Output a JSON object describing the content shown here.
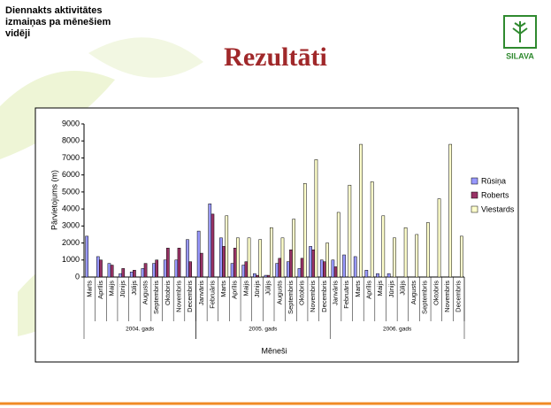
{
  "header": {
    "title": "Diennakts aktivitātes izmaiņas pa mēnešiem vidēji",
    "slide_title": "Rezultāti",
    "logo_text": "SILAVA"
  },
  "chart_data": {
    "type": "bar",
    "ylabel": "Pārvietojums (m)",
    "xlabel": "Mēneši",
    "groups": [
      {
        "label": "2004. gads",
        "categories": [
          "Marts",
          "Aprīlis",
          "Maijs",
          "Jūnijs",
          "Jūlijs",
          "Augusts",
          "Septembris",
          "Oktobris",
          "Novembris",
          "Decembris"
        ]
      },
      {
        "label": "2005. gads",
        "categories": [
          "Janvāris",
          "Februāris",
          "Marts",
          "Aprīlis",
          "Maijs",
          "Jūnijs",
          "Jūlijs",
          "Augusts",
          "Septembris",
          "Oktobris",
          "Novembris",
          "Decembris"
        ]
      },
      {
        "label": "2006. gads",
        "categories": [
          "Janvāris",
          "Februāris",
          "Marts",
          "Aprīlis",
          "Maijs",
          "Jūnijs",
          "Jūlijs",
          "Augusts",
          "Septembris",
          "Oktobris",
          "Novembris",
          "Decembris"
        ]
      }
    ],
    "series": [
      {
        "name": "Rūsiņa",
        "color": "#9999ff",
        "values": [
          2400,
          1200,
          800,
          200,
          300,
          500,
          800,
          1000,
          1000,
          2200,
          2700,
          4300,
          2300,
          800,
          700,
          200,
          100,
          800,
          900,
          500,
          1800,
          1000,
          1000,
          1300,
          1200,
          400,
          200,
          200,
          0,
          0,
          0,
          0,
          0,
          0
        ]
      },
      {
        "name": "Roberts",
        "color": "#993366",
        "values": [
          0,
          1000,
          700,
          500,
          400,
          800,
          1000,
          1700,
          1700,
          900,
          1400,
          3700,
          1800,
          1700,
          900,
          100,
          100,
          1100,
          1600,
          1100,
          1600,
          900,
          600,
          0,
          0,
          0,
          0,
          0,
          0,
          0,
          0,
          0,
          0,
          0
        ]
      },
      {
        "name": "Viestards",
        "color": "#ffffcc",
        "values": [
          0,
          0,
          0,
          0,
          0,
          0,
          0,
          0,
          0,
          0,
          0,
          0,
          3600,
          2300,
          2300,
          2200,
          2900,
          2300,
          3400,
          5500,
          6900,
          2000,
          3800,
          5400,
          7800,
          5600,
          3600,
          2300,
          2900,
          2500,
          3200,
          4600,
          7800,
          2400
        ]
      }
    ],
    "ylim": [
      0,
      9000
    ],
    "yticks": [
      0,
      1000,
      2000,
      3000,
      4000,
      5000,
      6000,
      7000,
      8000,
      9000
    ],
    "grid": false,
    "legend": "right"
  }
}
